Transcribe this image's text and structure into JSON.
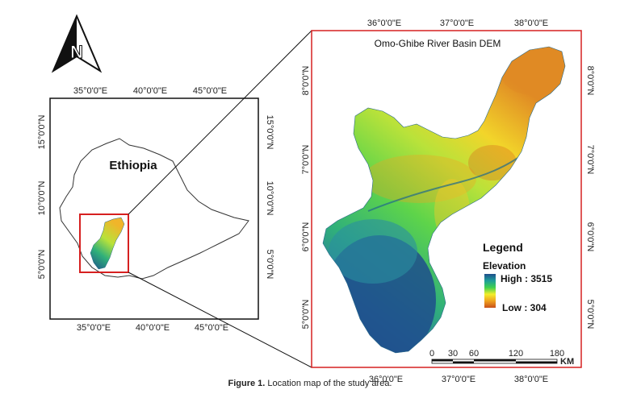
{
  "figure": {
    "caption_label": "Figure 1.",
    "caption_text": "Location map of the study area."
  },
  "north_arrow": {
    "letter": "N",
    "icon": "north-arrow-icon"
  },
  "overview_map": {
    "country_label": "Ethiopia",
    "top_lon_labels": [
      "35°0'0\"E",
      "40°0'0\"E",
      "45°0'0\"E"
    ],
    "bottom_lon_labels": [
      "35°0'0\"E",
      "40°0'0\"E",
      "45°0'0\"E"
    ],
    "left_lat_labels": [
      "15°0'0\"N",
      "10°0'0\"N",
      "5°0'0\"N"
    ],
    "right_lat_labels": [
      "15°0'0\"N",
      "10°0'0\"N",
      "5°0'0\"N"
    ],
    "highlight_color": "#d62020"
  },
  "detail_map": {
    "title": "Omo-Ghibe River Basin DEM",
    "top_lon_labels": [
      "36°0'0\"E",
      "37°0'0\"E",
      "38°0'0\"E"
    ],
    "bottom_lon_labels": [
      "36°0'0\"E",
      "37°0'0\"E",
      "38°0'0\"E"
    ],
    "left_lat_labels": [
      "8°0'0\"N",
      "7°0'0\"N",
      "6°0'0\"N",
      "5°0'0\"N"
    ],
    "right_lat_labels": [
      "8°0'0\"N",
      "7°0'0\"N",
      "6°0'0\"N",
      "5°0'0\"N"
    ],
    "frame_color": "#d62020",
    "legend": {
      "title": "Legend",
      "subtitle": "Elevation",
      "high_label": "High : 3515",
      "low_label": "Low : 304",
      "high_value": 3515,
      "low_value": 304,
      "gradient_colors": [
        "#1f4e8c",
        "#1e9e9a",
        "#3fcf4f",
        "#f2ef2a",
        "#f0a21f",
        "#c8501a"
      ]
    },
    "scale_bar": {
      "ticks": [
        "0",
        "30",
        "60",
        "120",
        "180"
      ],
      "unit": "KM"
    }
  }
}
